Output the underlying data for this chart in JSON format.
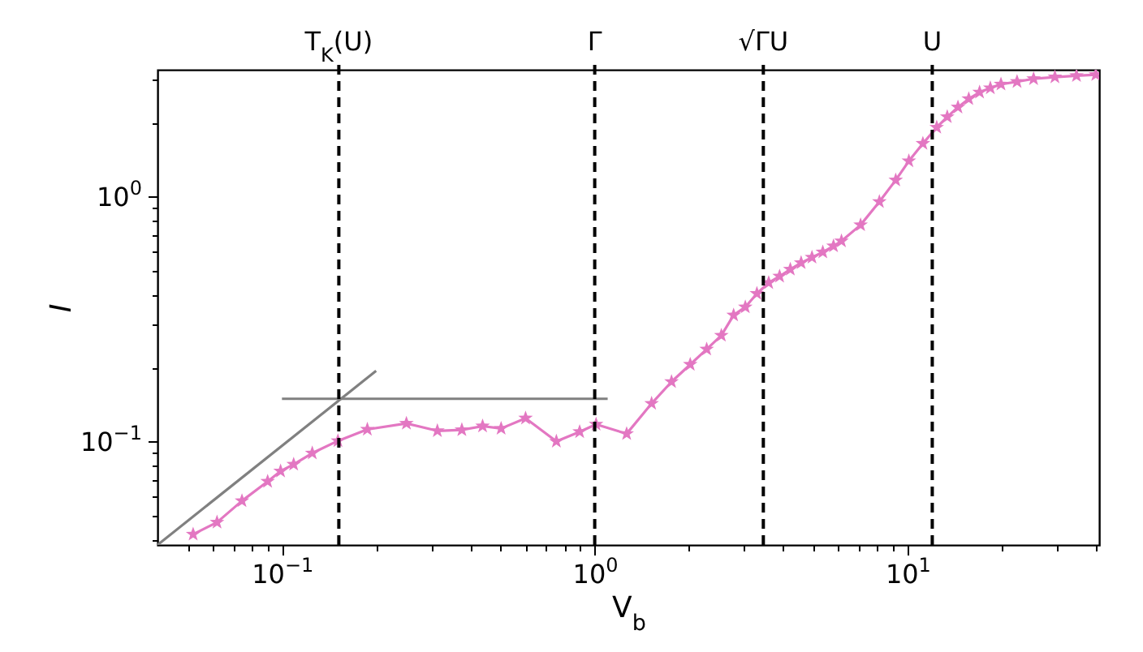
{
  "chart_data": {
    "type": "line",
    "xlabel": "V$_{b}$",
    "ylabel": "I",
    "log": "xy",
    "grid": false,
    "xlim": [
      0.04,
      41
    ],
    "ylim": [
      0.038,
      3.3
    ],
    "xticks": [
      {
        "value": 0.05,
        "label": null
      },
      {
        "value": 0.06,
        "label": null
      },
      {
        "value": 0.07,
        "label": null
      },
      {
        "value": 0.08,
        "label": null
      },
      {
        "value": 0.09,
        "label": null
      },
      {
        "value": 0.1,
        "label": "10$^{−1}$"
      },
      {
        "value": 0.2,
        "label": null
      },
      {
        "value": 0.3,
        "label": null
      },
      {
        "value": 0.4,
        "label": null
      },
      {
        "value": 0.5,
        "label": null
      },
      {
        "value": 0.6,
        "label": null
      },
      {
        "value": 0.7,
        "label": null
      },
      {
        "value": 0.8,
        "label": null
      },
      {
        "value": 0.9,
        "label": null
      },
      {
        "value": 1,
        "label": "10$^{0}$"
      },
      {
        "value": 2,
        "label": null
      },
      {
        "value": 3,
        "label": null
      },
      {
        "value": 4,
        "label": null
      },
      {
        "value": 5,
        "label": null
      },
      {
        "value": 6,
        "label": null
      },
      {
        "value": 7,
        "label": null
      },
      {
        "value": 8,
        "label": null
      },
      {
        "value": 9,
        "label": null
      },
      {
        "value": 10,
        "label": "10$^{1}$"
      },
      {
        "value": 20,
        "label": null
      },
      {
        "value": 30,
        "label": null
      },
      {
        "value": 40,
        "label": null
      }
    ],
    "yticks": [
      {
        "value": 0.04,
        "label": null
      },
      {
        "value": 0.05,
        "label": null
      },
      {
        "value": 0.06,
        "label": null
      },
      {
        "value": 0.07,
        "label": null
      },
      {
        "value": 0.08,
        "label": null
      },
      {
        "value": 0.09,
        "label": null
      },
      {
        "value": 0.1,
        "label": "10$^{−1}$"
      },
      {
        "value": 0.2,
        "label": null
      },
      {
        "value": 0.3,
        "label": null
      },
      {
        "value": 0.4,
        "label": null
      },
      {
        "value": 0.5,
        "label": null
      },
      {
        "value": 0.6,
        "label": null
      },
      {
        "value": 0.7,
        "label": null
      },
      {
        "value": 0.8,
        "label": null
      },
      {
        "value": 0.9,
        "label": null
      },
      {
        "value": 1,
        "label": "10$^{0}$"
      },
      {
        "value": 2,
        "label": null
      },
      {
        "value": 3,
        "label": null
      }
    ],
    "ref_lines": [
      {
        "axis": "x",
        "value": 0.152,
        "label": "T$_{K}$(U)",
        "color": "#000000",
        "line_style": "dashed"
      },
      {
        "axis": "x",
        "value": 1,
        "label": "Γ",
        "color": "#000000",
        "line_style": "dashed"
      },
      {
        "axis": "x",
        "value": 3.46,
        "label": "√ΓU",
        "color": "#000000",
        "line_style": "dashed"
      },
      {
        "axis": "x",
        "value": 12,
        "label": "U",
        "color": "#000000",
        "line_style": "dashed"
      }
    ],
    "series": [
      {
        "color": "#e377c2",
        "marker": "star",
        "x": [
          0.052,
          0.062,
          0.0745,
          0.09,
          0.099,
          0.109,
          0.125,
          0.151,
          0.1875,
          0.25,
          0.314,
          0.376,
          0.438,
          0.502,
          0.601,
          0.754,
          0.895,
          1.01,
          1.265,
          1.52,
          1.76,
          2.02,
          2.28,
          2.54,
          2.78,
          3.03,
          3.3,
          3.6,
          3.9,
          4.22,
          4.57,
          4.95,
          5.36,
          5.8,
          6.15,
          7.08,
          8.13,
          9.17,
          10.1,
          11.2,
          12.4,
          13.4,
          14.5,
          15.7,
          17,
          18.4,
          19.9,
          22.4,
          25.3,
          29.6,
          34.7,
          40
        ],
        "values": [
          0.042,
          0.047,
          0.0575,
          0.069,
          0.076,
          0.081,
          0.09,
          0.101,
          0.1125,
          0.119,
          0.111,
          0.112,
          0.116,
          0.1135,
          0.125,
          0.1005,
          0.11,
          0.118,
          0.108,
          0.1435,
          0.176,
          0.207,
          0.239,
          0.272,
          0.329,
          0.355,
          0.403,
          0.446,
          0.474,
          0.506,
          0.538,
          0.566,
          0.595,
          0.63,
          0.66,
          0.768,
          0.955,
          1.17,
          1.4,
          1.65,
          1.92,
          2.12,
          2.32,
          2.51,
          2.67,
          2.78,
          2.88,
          2.95,
          3.03,
          3.08,
          3.12,
          3.15
        ]
      },
      {
        "color": "#808080",
        "marker": "none",
        "x": [
          0.04,
          0.2
        ],
        "values": [
          0.038,
          0.195
        ]
      },
      {
        "color": "#808080",
        "marker": "none",
        "x": [
          0.1,
          1.1
        ],
        "values": [
          0.15,
          0.15
        ]
      }
    ]
  }
}
